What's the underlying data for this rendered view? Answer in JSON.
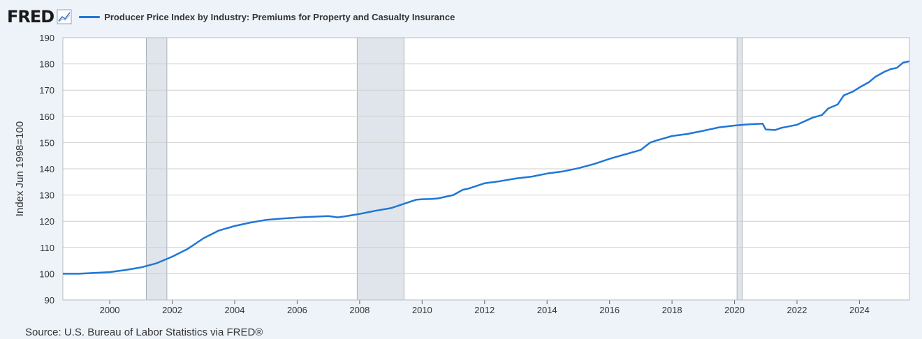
{
  "header": {
    "logo": "FRED",
    "series_label": "Producer Price Index by Industry: Premiums for Property and Casualty Insurance"
  },
  "source": "Source: U.S. Bureau of Labor Statistics via FRED®",
  "colors": {
    "line": "#1f77d6",
    "recession": "#e0e5ec",
    "grid": "#cfcfcf",
    "background": "#eef3fa"
  },
  "chart_data": {
    "type": "line",
    "title": "",
    "xlabel": "",
    "ylabel": "Index Jun 1998=100",
    "xlim": [
      1998.5,
      2025.6
    ],
    "ylim": [
      90,
      190
    ],
    "yticks": [
      "90",
      "100",
      "110",
      "120",
      "130",
      "140",
      "150",
      "160",
      "170",
      "180",
      "190"
    ],
    "xticks": [
      "2000",
      "2002",
      "2004",
      "2006",
      "2008",
      "2010",
      "2012",
      "2014",
      "2016",
      "2018",
      "2020",
      "2022",
      "2024"
    ],
    "grid": true,
    "legend": "top",
    "recessions": [
      [
        2001.17,
        2001.83
      ],
      [
        2007.92,
        2009.42
      ],
      [
        2020.08,
        2020.25
      ]
    ],
    "series": [
      {
        "name": "Producer Price Index by Industry: Premiums for Property and Casualty Insurance",
        "x": [
          1998.5,
          1999.0,
          1999.5,
          2000.0,
          2000.5,
          2001.0,
          2001.5,
          2002.0,
          2002.5,
          2003.0,
          2003.5,
          2004.0,
          2004.5,
          2005.0,
          2005.5,
          2006.0,
          2006.5,
          2007.0,
          2007.3,
          2007.5,
          2008.0,
          2008.3,
          2008.5,
          2009.0,
          2009.5,
          2009.8,
          2010.0,
          2010.3,
          2010.5,
          2011.0,
          2011.3,
          2011.5,
          2012.0,
          2012.5,
          2013.0,
          2013.5,
          2014.0,
          2014.5,
          2015.0,
          2015.5,
          2016.0,
          2016.5,
          2017.0,
          2017.3,
          2017.5,
          2018.0,
          2018.5,
          2019.0,
          2019.5,
          2020.0,
          2020.3,
          2020.5,
          2020.9,
          2021.0,
          2021.3,
          2021.5,
          2021.8,
          2022.0,
          2022.5,
          2022.8,
          2023.0,
          2023.3,
          2023.5,
          2023.8,
          2024.0,
          2024.3,
          2024.5,
          2024.8,
          2025.0,
          2025.2,
          2025.4,
          2025.6
        ],
        "y": [
          100,
          100,
          100.3,
          100.6,
          101.4,
          102.4,
          104,
          106.5,
          109.5,
          113.5,
          116.5,
          118.2,
          119.5,
          120.5,
          121,
          121.4,
          121.7,
          122.0,
          121.5,
          121.8,
          122.8,
          123.5,
          124.0,
          125.0,
          127.0,
          128.2,
          128.4,
          128.5,
          128.7,
          130.0,
          132.0,
          132.5,
          134.5,
          135.3,
          136.3,
          137.0,
          138.2,
          139.0,
          140.2,
          141.8,
          143.8,
          145.5,
          147.2,
          150.0,
          150.8,
          152.5,
          153.3,
          154.5,
          155.8,
          156.5,
          156.8,
          157,
          157.2,
          155,
          154.8,
          155.6,
          156.3,
          156.8,
          159.5,
          160.5,
          163,
          164.5,
          168,
          169.5,
          171,
          173,
          175,
          177,
          178,
          178.5,
          180.5,
          181
        ]
      }
    ]
  }
}
